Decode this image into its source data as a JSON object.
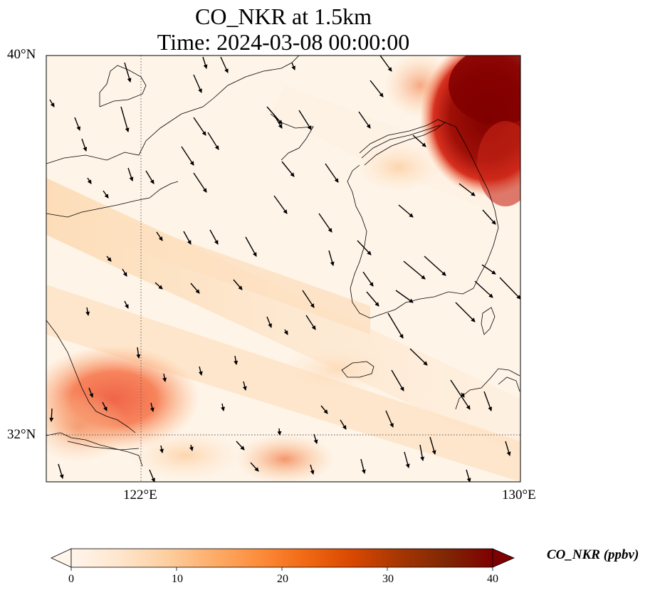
{
  "title": {
    "line1": "CO_NKR at 1.5km",
    "line2": "Time: 2024-03-08 00:00:00"
  },
  "map": {
    "lat_labels": [
      "40°N",
      "32°N"
    ],
    "lon_labels": [
      "122°E",
      "130°E"
    ],
    "lon_range": [
      120,
      130
    ],
    "lat_range": [
      31,
      40
    ],
    "gridlines": {
      "lon": [
        122
      ],
      "lat": [
        32
      ],
      "style": "dotted"
    },
    "field": "CO_NKR",
    "units": "ppbv",
    "level": "1.5km",
    "overlay": "wind vectors"
  },
  "colorbar": {
    "label": "CO_NKR (ppbv)",
    "ticks": [
      "0",
      "10",
      "20",
      "30",
      "40"
    ],
    "min": 0,
    "max": 40,
    "extend": "both",
    "colormap": [
      "#fff5eb",
      "#fee6ce",
      "#fdd0a2",
      "#fdae6b",
      "#fd8d3c",
      "#f16913",
      "#d94801",
      "#a63603",
      "#7f2704"
    ],
    "cmap_name": "OrRd-like",
    "low_color": "#fff5eb",
    "high_color": "#7f0000"
  }
}
